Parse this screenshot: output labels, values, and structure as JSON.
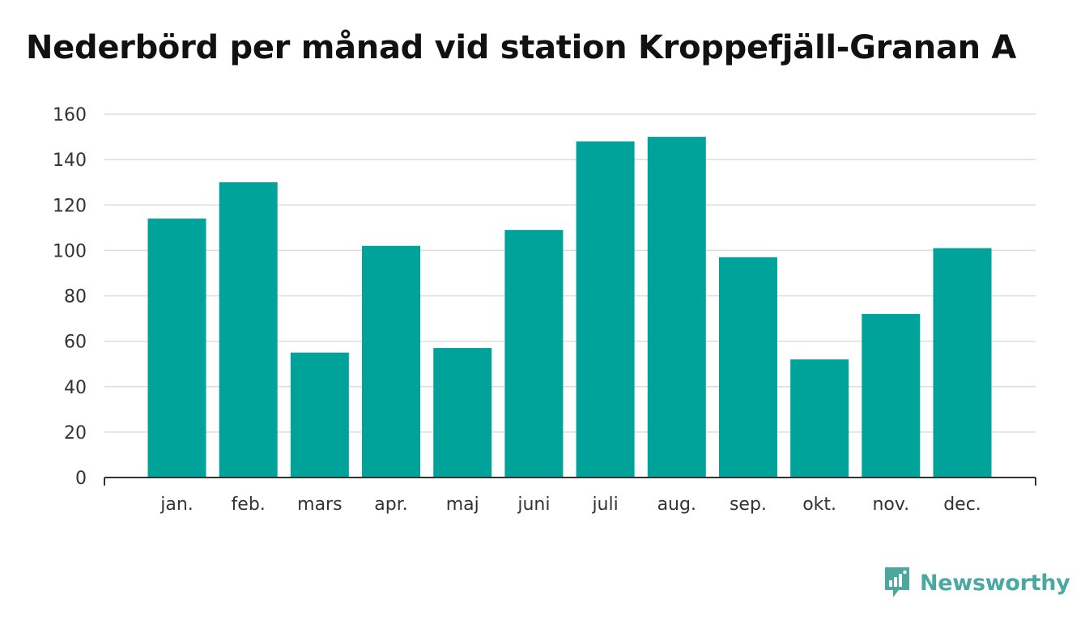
{
  "chart_data": {
    "type": "bar",
    "title": "Nederbörd per månad vid station Kroppefjäll-Granan A",
    "xlabel": "",
    "ylabel": "",
    "categories": [
      "jan.",
      "feb.",
      "mars",
      "apr.",
      "maj",
      "juni",
      "juli",
      "aug.",
      "sep.",
      "okt.",
      "nov.",
      "dec."
    ],
    "values": [
      114,
      130,
      55,
      102,
      57,
      109,
      148,
      150,
      97,
      52,
      72,
      101
    ],
    "ylim": [
      0,
      160
    ],
    "yticks": [
      0,
      20,
      40,
      60,
      80,
      100,
      120,
      140,
      160
    ],
    "grid": true,
    "legend": "none",
    "bar_color": "#00a39a",
    "grid_color": "#dddddd",
    "axis_color": "#333333"
  },
  "branding": {
    "name": "Newsworthy",
    "logo_icon": "newsworthy-logo-icon",
    "color": "#4aa89f"
  }
}
